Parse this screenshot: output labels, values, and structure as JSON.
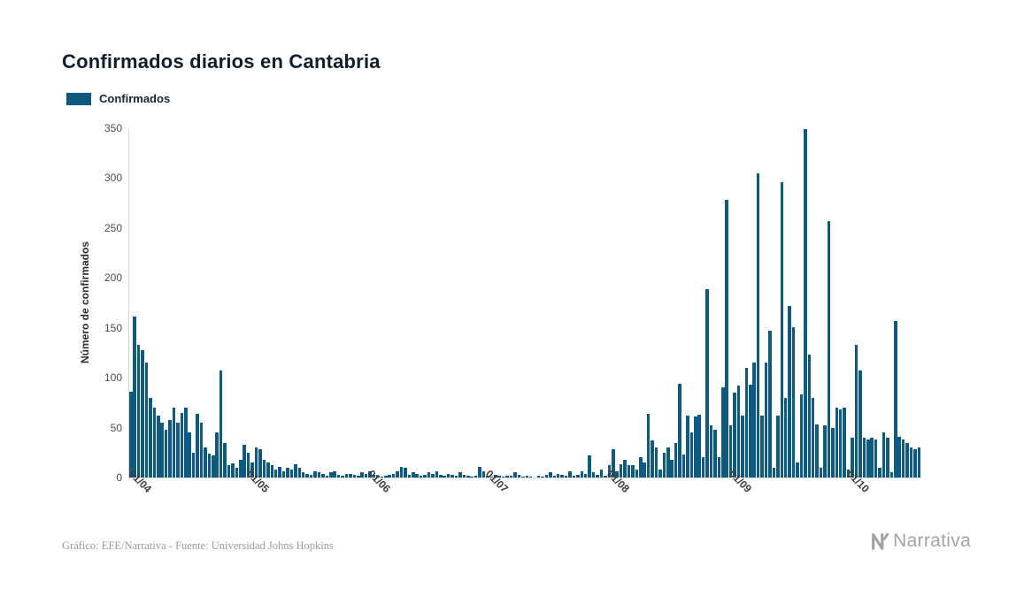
{
  "page": {
    "title": "Confirmados diarios en Cantabria",
    "caption": "Gráfico: EFE/Narrativa - Fuente: Universidad Johns Hopkins",
    "brand": "Narrativa"
  },
  "legend": {
    "label": "Confirmados",
    "color": "#0f5b7f"
  },
  "chart_data": {
    "type": "bar",
    "title": "Confirmados diarios en Cantabria",
    "series_name": "Confirmados",
    "xlabel": "",
    "ylabel": "Número de confirmados",
    "ylim": [
      0,
      350
    ],
    "y_ticks": [
      0,
      50,
      100,
      150,
      200,
      250,
      300,
      350
    ],
    "grid": false,
    "legend_position": "top-left",
    "bar_color": "#0f5b7f",
    "x_ticks": [
      {
        "label": "01/04",
        "index": 6
      },
      {
        "label": "01/05",
        "index": 36
      },
      {
        "label": "01/06",
        "index": 67
      },
      {
        "label": "01/07",
        "index": 97
      },
      {
        "label": "01/08",
        "index": 128
      },
      {
        "label": "01/09",
        "index": 159
      },
      {
        "label": "01/10",
        "index": 189
      }
    ],
    "values": [
      86,
      161,
      133,
      128,
      115,
      80,
      70,
      62,
      55,
      48,
      58,
      70,
      55,
      65,
      70,
      45,
      25,
      64,
      55,
      30,
      24,
      22,
      45,
      107,
      35,
      12,
      14,
      10,
      18,
      33,
      25,
      15,
      30,
      28,
      18,
      15,
      12,
      8,
      11,
      6,
      10,
      8,
      13,
      10,
      5,
      4,
      3,
      6,
      5,
      4,
      2,
      5,
      6,
      3,
      2,
      4,
      4,
      3,
      2,
      5,
      4,
      6,
      3,
      2,
      1,
      2,
      3,
      4,
      6,
      11,
      10,
      3,
      5,
      4,
      2,
      3,
      5,
      4,
      6,
      3,
      2,
      4,
      3,
      2,
      5,
      3,
      2,
      1,
      2,
      11,
      6,
      2,
      1,
      3,
      2,
      1,
      2,
      2,
      5,
      3,
      1,
      2,
      1,
      0,
      2,
      1,
      3,
      5,
      2,
      4,
      3,
      2,
      6,
      2,
      3,
      6,
      4,
      22,
      5,
      3,
      8,
      2,
      12,
      28,
      6,
      13,
      18,
      12,
      12,
      8,
      20,
      15,
      64,
      37,
      30,
      8,
      25,
      30,
      18,
      35,
      94,
      23,
      62,
      45,
      61,
      63,
      20,
      189,
      52,
      48,
      20,
      90,
      278,
      52,
      85,
      92,
      62,
      110,
      93,
      115,
      305,
      62,
      115,
      147,
      10,
      62,
      296,
      80,
      172,
      151,
      15,
      83,
      349,
      123,
      80,
      53,
      10,
      52,
      257,
      50,
      70,
      68,
      70,
      8,
      40,
      133,
      107,
      40,
      38,
      40,
      38,
      10,
      45,
      40,
      5,
      157,
      41,
      38,
      35,
      30,
      28,
      30
    ]
  }
}
